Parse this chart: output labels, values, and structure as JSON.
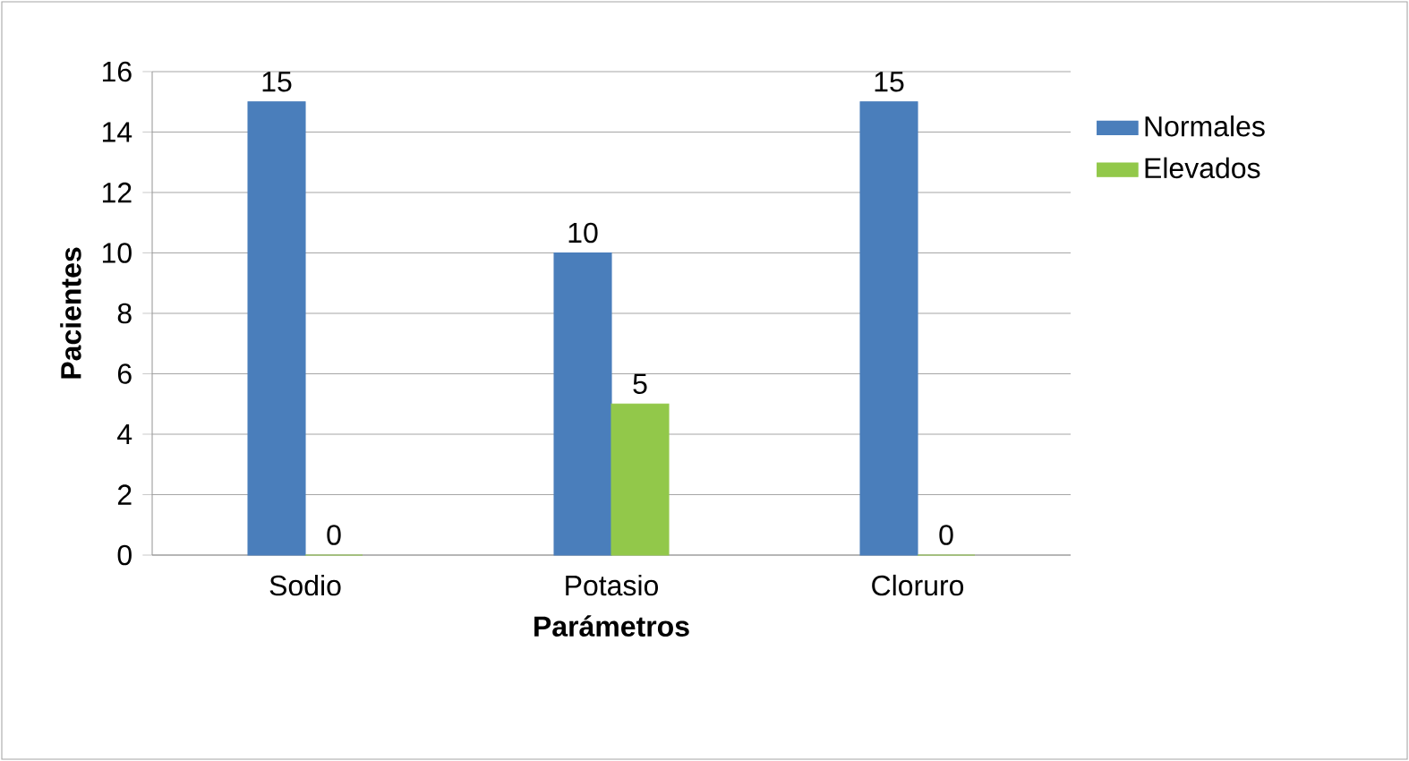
{
  "chart_data": {
    "type": "bar",
    "xlabel": "Parámetros",
    "ylabel": "Pacientes",
    "categories": [
      "Sodio",
      "Potasio",
      "Cloruro"
    ],
    "series": [
      {
        "name": "Normales",
        "color": "#4a7ebb",
        "values": [
          15,
          10,
          15
        ]
      },
      {
        "name": "Elevados",
        "color": "#92c84a",
        "values": [
          0,
          5,
          0
        ]
      }
    ],
    "ylim": [
      0,
      16
    ],
    "yticks": [
      0,
      2,
      4,
      6,
      8,
      10,
      12,
      14,
      16
    ],
    "grid": "y",
    "legend": "right",
    "data_labels": true
  }
}
